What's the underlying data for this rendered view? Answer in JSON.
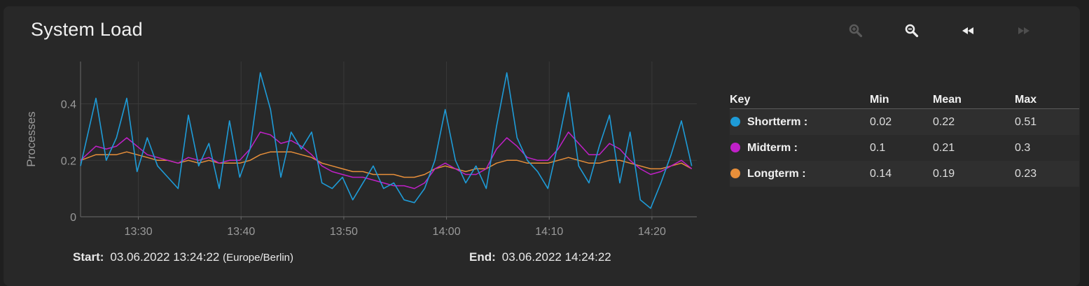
{
  "title": "System Load",
  "toolbar": {
    "icons": [
      "zoom-in-icon",
      "zoom-out-icon",
      "rewind-icon",
      "fast-forward-icon"
    ]
  },
  "colors": {
    "Shortterm": "#1e9bd7",
    "Midterm": "#c020c8",
    "Longterm": "#e88f3a",
    "background": "#282828"
  },
  "chart_data": {
    "type": "line",
    "title": "",
    "xlabel": "",
    "ylabel": "Processes",
    "xlim": [
      "13:24:22",
      "14:24:22"
    ],
    "ylim": [
      0,
      0.55
    ],
    "grid": true,
    "y_ticks": [
      "0",
      "0.2",
      "0.4"
    ],
    "x_ticks": [
      "13:30",
      "13:40",
      "13:50",
      "14:00",
      "14:10",
      "14:20"
    ],
    "x_tick_minutes": [
      5.63,
      15.63,
      25.63,
      35.63,
      45.63,
      55.63
    ],
    "x": [
      0,
      1.5,
      2.5,
      3.5,
      4.5,
      5.5,
      6.5,
      7.5,
      8.5,
      9.5,
      10.5,
      11.5,
      12.5,
      13.5,
      14.5,
      15.5,
      16.5,
      17.5,
      18.5,
      19.5,
      20.5,
      21.5,
      22.5,
      23.5,
      24.5,
      25.5,
      26.5,
      27.5,
      28.5,
      29.5,
      30.5,
      31.5,
      32.5,
      33.5,
      34.5,
      35.5,
      36.5,
      37.5,
      38.5,
      39.5,
      40.5,
      41.5,
      42.5,
      43.5,
      44.5,
      45.5,
      46.5,
      47.5,
      48.5,
      49.5,
      50.5,
      51.5,
      52.5,
      53.5,
      54.5,
      55.5,
      56.5,
      57.5,
      58.5,
      59.5
    ],
    "series": [
      {
        "name": "Shortterm",
        "values": [
          0.18,
          0.42,
          0.2,
          0.28,
          0.42,
          0.16,
          0.28,
          0.18,
          0.14,
          0.1,
          0.36,
          0.18,
          0.26,
          0.1,
          0.34,
          0.14,
          0.24,
          0.51,
          0.38,
          0.14,
          0.3,
          0.24,
          0.3,
          0.12,
          0.1,
          0.14,
          0.06,
          0.12,
          0.18,
          0.1,
          0.12,
          0.06,
          0.05,
          0.1,
          0.2,
          0.38,
          0.2,
          0.12,
          0.18,
          0.1,
          0.32,
          0.51,
          0.28,
          0.2,
          0.16,
          0.1,
          0.26,
          0.44,
          0.18,
          0.12,
          0.25,
          0.36,
          0.12,
          0.3,
          0.06,
          0.03,
          0.12,
          0.22,
          0.34,
          0.18
        ]
      },
      {
        "name": "Midterm",
        "values": [
          0.2,
          0.25,
          0.24,
          0.25,
          0.28,
          0.25,
          0.22,
          0.21,
          0.2,
          0.19,
          0.21,
          0.2,
          0.21,
          0.19,
          0.2,
          0.2,
          0.24,
          0.3,
          0.29,
          0.26,
          0.27,
          0.25,
          0.22,
          0.18,
          0.16,
          0.15,
          0.14,
          0.14,
          0.13,
          0.12,
          0.11,
          0.11,
          0.1,
          0.12,
          0.17,
          0.19,
          0.17,
          0.15,
          0.15,
          0.17,
          0.24,
          0.28,
          0.25,
          0.21,
          0.2,
          0.2,
          0.24,
          0.3,
          0.26,
          0.22,
          0.22,
          0.26,
          0.24,
          0.2,
          0.17,
          0.15,
          0.16,
          0.18,
          0.2,
          0.17
        ]
      },
      {
        "name": "Longterm",
        "values": [
          0.2,
          0.22,
          0.22,
          0.22,
          0.23,
          0.22,
          0.21,
          0.2,
          0.2,
          0.19,
          0.2,
          0.19,
          0.2,
          0.19,
          0.19,
          0.19,
          0.2,
          0.22,
          0.23,
          0.23,
          0.23,
          0.22,
          0.21,
          0.19,
          0.18,
          0.17,
          0.16,
          0.16,
          0.15,
          0.15,
          0.15,
          0.14,
          0.14,
          0.15,
          0.17,
          0.18,
          0.17,
          0.16,
          0.17,
          0.17,
          0.19,
          0.2,
          0.2,
          0.19,
          0.19,
          0.19,
          0.2,
          0.21,
          0.2,
          0.19,
          0.19,
          0.2,
          0.2,
          0.19,
          0.18,
          0.17,
          0.17,
          0.18,
          0.19,
          0.17
        ]
      }
    ]
  },
  "legend": {
    "headers": {
      "key": "Key",
      "min": "Min",
      "mean": "Mean",
      "max": "Max"
    },
    "rows": [
      {
        "label": "Shortterm :",
        "min": "0.02",
        "mean": "0.22",
        "max": "0.51"
      },
      {
        "label": "Midterm :",
        "min": "0.1",
        "mean": "0.21",
        "max": "0.3"
      },
      {
        "label": "Longterm :",
        "min": "0.14",
        "mean": "0.19",
        "max": "0.23"
      }
    ]
  },
  "range": {
    "start_label": "Start:",
    "start_value": "03.06.2022 13:24:22",
    "timezone": "(Europe/Berlin)",
    "end_label": "End:",
    "end_value": "03.06.2022 14:24:22"
  }
}
